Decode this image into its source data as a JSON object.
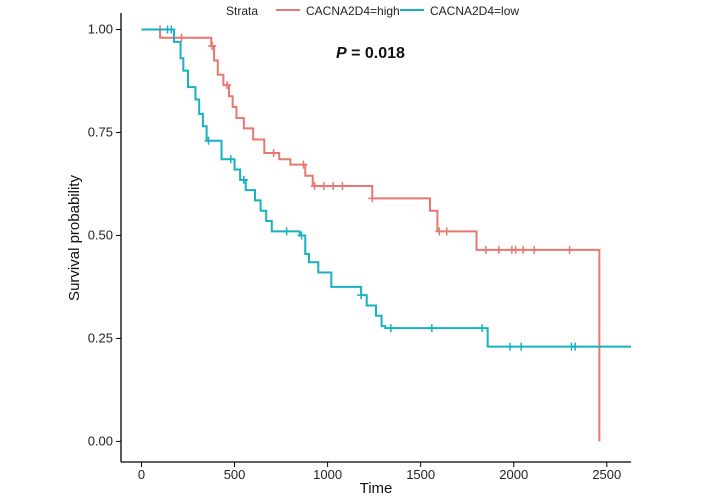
{
  "chart_data": {
    "type": "line",
    "subtype": "kaplan-meier-step",
    "xlabel": "Time",
    "ylabel": "Survival probability",
    "xlim": [
      -110,
      2630
    ],
    "ylim": [
      -0.05,
      1.04
    ],
    "x_ticks": [
      0,
      500,
      1000,
      1500,
      2000,
      2500
    ],
    "y_ticks": [
      0.0,
      0.25,
      0.5,
      0.75,
      1.0
    ],
    "y_tick_labels": [
      "0.00",
      "0.25",
      "0.50",
      "0.75",
      "1.00"
    ],
    "grid": false,
    "legend": {
      "title": "Strata",
      "placement": "top",
      "entries": [
        "CACNA2D4=high",
        "CACNA2D4=low"
      ]
    },
    "annotation": {
      "prefix": "P",
      "text": " = 0.018"
    },
    "series": [
      {
        "name": "CACNA2D4=high",
        "color": "#E8776F",
        "steps": [
          [
            0,
            1.0
          ],
          [
            95,
            1.0
          ],
          [
            100,
            0.98
          ],
          [
            330,
            0.98
          ],
          [
            375,
            0.96
          ],
          [
            390,
            0.925
          ],
          [
            410,
            0.89
          ],
          [
            440,
            0.865
          ],
          [
            470,
            0.838
          ],
          [
            490,
            0.812
          ],
          [
            510,
            0.785
          ],
          [
            550,
            0.76
          ],
          [
            600,
            0.733
          ],
          [
            660,
            0.7
          ],
          [
            740,
            0.685
          ],
          [
            800,
            0.672
          ],
          [
            880,
            0.645
          ],
          [
            920,
            0.62
          ],
          [
            1240,
            0.59
          ],
          [
            1550,
            0.56
          ],
          [
            1590,
            0.51
          ],
          [
            1800,
            0.465
          ],
          [
            2460,
            0.0
          ]
        ],
        "end_x": 2460,
        "censored": [
          [
            100,
            1.0
          ],
          [
            215,
            0.98
          ],
          [
            380,
            0.96
          ],
          [
            460,
            0.865
          ],
          [
            710,
            0.7
          ],
          [
            870,
            0.672
          ],
          [
            930,
            0.62
          ],
          [
            980,
            0.62
          ],
          [
            1030,
            0.62
          ],
          [
            1080,
            0.62
          ],
          [
            1240,
            0.59
          ],
          [
            1600,
            0.51
          ],
          [
            1640,
            0.51
          ],
          [
            1850,
            0.465
          ],
          [
            1920,
            0.465
          ],
          [
            1990,
            0.465
          ],
          [
            2010,
            0.465
          ],
          [
            2050,
            0.465
          ],
          [
            2110,
            0.465
          ],
          [
            2300,
            0.465
          ]
        ]
      },
      {
        "name": "CACNA2D4=low",
        "color": "#17B1C1",
        "steps": [
          [
            0,
            1.0
          ],
          [
            160,
            1.0
          ],
          [
            175,
            0.97
          ],
          [
            210,
            0.93
          ],
          [
            225,
            0.9
          ],
          [
            250,
            0.86
          ],
          [
            290,
            0.83
          ],
          [
            310,
            0.795
          ],
          [
            330,
            0.765
          ],
          [
            350,
            0.73
          ],
          [
            430,
            0.685
          ],
          [
            500,
            0.66
          ],
          [
            530,
            0.635
          ],
          [
            560,
            0.61
          ],
          [
            610,
            0.585
          ],
          [
            640,
            0.56
          ],
          [
            670,
            0.535
          ],
          [
            700,
            0.51
          ],
          [
            850,
            0.5
          ],
          [
            880,
            0.455
          ],
          [
            900,
            0.435
          ],
          [
            950,
            0.41
          ],
          [
            1020,
            0.375
          ],
          [
            1180,
            0.355
          ],
          [
            1210,
            0.33
          ],
          [
            1260,
            0.305
          ],
          [
            1290,
            0.28
          ],
          [
            1310,
            0.275
          ],
          [
            1860,
            0.23
          ],
          [
            2630,
            0.23
          ]
        ],
        "end_x": 2630,
        "censored": [
          [
            140,
            1.0
          ],
          [
            160,
            1.0
          ],
          [
            360,
            0.73
          ],
          [
            480,
            0.685
          ],
          [
            550,
            0.635
          ],
          [
            780,
            0.51
          ],
          [
            860,
            0.5
          ],
          [
            1180,
            0.355
          ],
          [
            1340,
            0.275
          ],
          [
            1560,
            0.275
          ],
          [
            1830,
            0.275
          ],
          [
            1980,
            0.23
          ],
          [
            2040,
            0.23
          ],
          [
            2310,
            0.23
          ],
          [
            2330,
            0.23
          ]
        ]
      }
    ]
  }
}
